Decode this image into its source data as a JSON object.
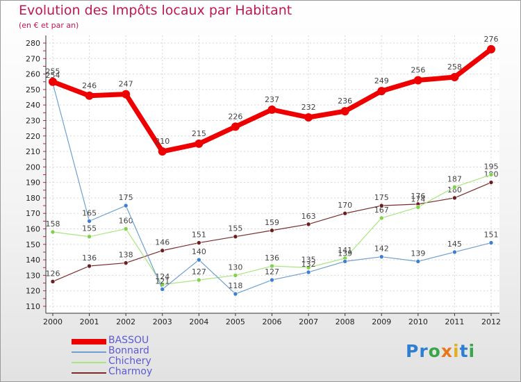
{
  "title": "Evolution des Impôts locaux par Habitant",
  "subtitle": "(en € et par an)",
  "brand": {
    "text": "Proxiti",
    "letters": [
      {
        "ch": "P",
        "color": "#2f7fd0"
      },
      {
        "ch": "r",
        "color": "#2f7fd0"
      },
      {
        "ch": "o",
        "color": "#3aa54a"
      },
      {
        "ch": "x",
        "color": "#e77718"
      },
      {
        "ch": "i",
        "color": "#e0b020"
      },
      {
        "ch": "t",
        "color": "#2f7fd0"
      },
      {
        "ch": "i",
        "color": "#3aa54a"
      }
    ]
  },
  "chart_data": {
    "type": "line",
    "title": "Evolution des Impôts locaux par Habitant",
    "ylabel": "(en € et par an)",
    "xlabel": "",
    "categories": [
      "2000",
      "2001",
      "2002",
      "2003",
      "2004",
      "2005",
      "2006",
      "2007",
      "2008",
      "2009",
      "2010",
      "2011",
      "2012"
    ],
    "ylim": [
      110,
      280
    ],
    "yticks": [
      110,
      120,
      130,
      140,
      150,
      160,
      170,
      180,
      190,
      200,
      210,
      220,
      230,
      240,
      250,
      260,
      270,
      280
    ],
    "grid": true,
    "legend_position": "bottom-left",
    "series": [
      {
        "name": "BASSOU",
        "color": "#ee0000",
        "line_width": 7,
        "marker_radius": 6,
        "values": [
          255,
          246,
          247,
          210,
          215,
          226,
          237,
          232,
          236,
          249,
          256,
          258,
          276
        ]
      },
      {
        "name": "Bonnard",
        "color": "#6e9fd0",
        "line_width": 1.2,
        "marker_radius": 3,
        "marker_color": "#3f7fcf",
        "values": [
          254,
          165,
          175,
          121,
          140,
          118,
          127,
          132,
          139,
          142,
          139,
          145,
          151
        ]
      },
      {
        "name": "Chichery",
        "color": "#a8e67e",
        "line_width": 1.2,
        "marker_radius": 3,
        "marker_color": "#7fd24a",
        "values": [
          158,
          155,
          160,
          124,
          127,
          130,
          136,
          135,
          141,
          167,
          174,
          187,
          195
        ]
      },
      {
        "name": "Charmoy",
        "color": "#7a2a2a",
        "line_width": 1.2,
        "marker_radius": 3,
        "marker_color": "#6a1f1f",
        "values": [
          126,
          136,
          138,
          146,
          151,
          155,
          159,
          163,
          170,
          175,
          176,
          180,
          190
        ]
      }
    ]
  }
}
